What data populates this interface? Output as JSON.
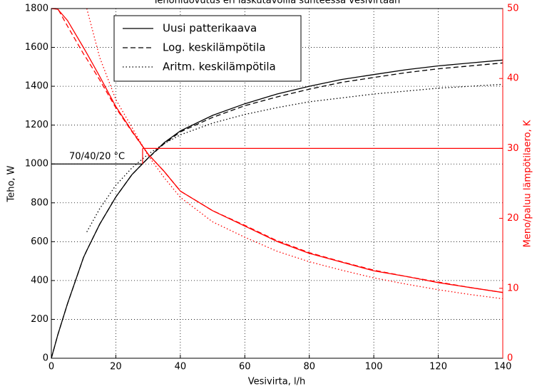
{
  "chart_data": {
    "type": "line",
    "title": "Tehonluovutus eri laskutavoilla suhteessa vesivirtaan",
    "x_label": "Vesivirta, l/h",
    "y_label": "Teho, W",
    "y2_label": "Meno/paluu lämpötilaero, K",
    "x": [
      0,
      2,
      5,
      10,
      11,
      15,
      20,
      25,
      30,
      35,
      40,
      50,
      60,
      70,
      80,
      90,
      100,
      110,
      120,
      130,
      140
    ],
    "series": [
      {
        "name": "Uusi patterikaava",
        "color": "#000000",
        "dash": "solid",
        "values": [
          0,
          120,
          280,
          520,
          555,
          690,
          830,
          945,
          1030,
          1110,
          1170,
          1250,
          1310,
          1360,
          1400,
          1435,
          1460,
          1485,
          1505,
          1520,
          1535
        ]
      },
      {
        "name": "Log. keskilämpötila",
        "color": "#000000",
        "dash": "dashed",
        "values": [
          0,
          120,
          280,
          520,
          555,
          690,
          830,
          945,
          1030,
          1105,
          1165,
          1240,
          1300,
          1345,
          1385,
          1420,
          1445,
          1470,
          1490,
          1505,
          1520
        ]
      },
      {
        "name": "Aritm. keskilämpötila",
        "color": "#000000",
        "dash": "dotted",
        "values": [
          null,
          null,
          null,
          null,
          650,
          770,
          890,
          980,
          1050,
          1105,
          1150,
          1210,
          1255,
          1290,
          1320,
          1340,
          1360,
          1375,
          1390,
          1400,
          1410
        ]
      },
      {
        "color": "#ff0000",
        "dash": "solid",
        "axis": "y2",
        "values": [
          50,
          49.9,
          48.3,
          44.4,
          43.6,
          40.3,
          36,
          32.5,
          29.2,
          26.7,
          23.9,
          21.1,
          18.9,
          16.7,
          15,
          13.75,
          12.5,
          11.7,
          10.8,
          10.1,
          9.4
        ]
      },
      {
        "color": "#ff0000",
        "dash": "dashed",
        "axis": "y2",
        "values": [
          50,
          50,
          47.5,
          43.5,
          42.8,
          39.8,
          35.8,
          32.4,
          29.2,
          26.7,
          23.9,
          21.1,
          19,
          16.8,
          15.1,
          13.8,
          12.6,
          11.7,
          10.9,
          10.1,
          9.4
        ]
      },
      {
        "color": "#ff0000",
        "dash": "dotted",
        "axis": "y2",
        "values": [
          null,
          null,
          null,
          null,
          50,
          43,
          37,
          33,
          29,
          25.8,
          23,
          19.5,
          17.3,
          15.3,
          13.8,
          12.6,
          11.5,
          10.6,
          9.8,
          9.1,
          8.5
        ]
      }
    ],
    "reference": {
      "label": "70/40/20 °C",
      "x": 28.3,
      "y": 1000,
      "y2": 30
    },
    "xlim": [
      0,
      140
    ],
    "xticks": [
      0,
      20,
      40,
      60,
      80,
      100,
      120,
      140
    ],
    "ylim": [
      0,
      1800
    ],
    "yticks": [
      0,
      200,
      400,
      600,
      800,
      1000,
      1200,
      1400,
      1600,
      1800
    ],
    "y2lim": [
      0,
      50
    ],
    "y2ticks": [
      0,
      10,
      20,
      30,
      40,
      50
    ],
    "y2_color": "#ff0000",
    "grid": true,
    "legend": "upper center"
  }
}
